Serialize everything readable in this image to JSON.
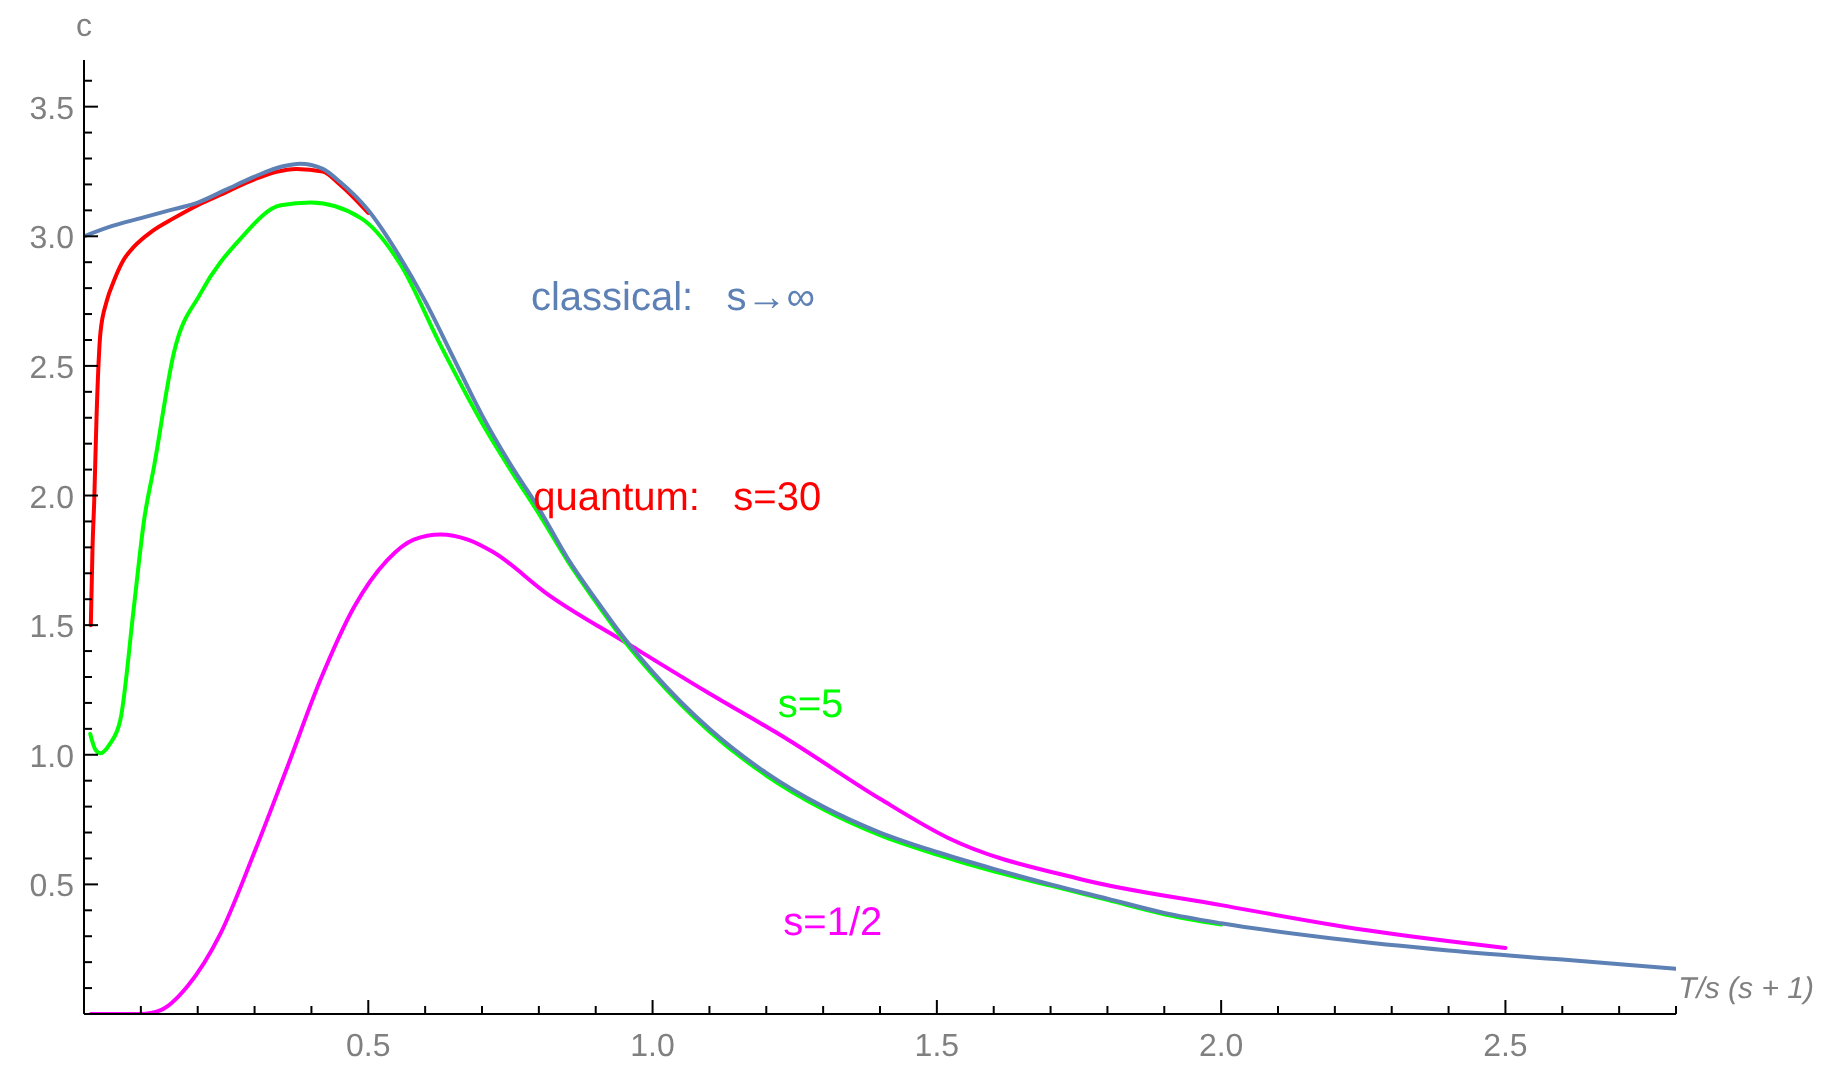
{
  "chart_data": {
    "type": "line",
    "xlabel": "T/s (s + 1)",
    "ylabel": "c",
    "marker": "none",
    "line_style": "solid",
    "xlim": [
      0,
      2.8
    ],
    "ylim": [
      0,
      3.68
    ],
    "xticks": [
      {
        "value": 0.1,
        "label": null
      },
      {
        "value": 0.2,
        "label": null
      },
      {
        "value": 0.3,
        "label": null
      },
      {
        "value": 0.4,
        "label": null
      },
      0.5,
      {
        "value": 0.6,
        "label": null
      },
      {
        "value": 0.7,
        "label": null
      },
      {
        "value": 0.8,
        "label": null
      },
      {
        "value": 0.9,
        "label": null
      },
      {
        "value": 1,
        "label": "1.0"
      },
      {
        "value": 1.1,
        "label": null
      },
      {
        "value": 1.2,
        "label": null
      },
      {
        "value": 1.3,
        "label": null
      },
      {
        "value": 1.4,
        "label": null
      },
      1.5,
      {
        "value": 1.6,
        "label": null
      },
      {
        "value": 1.7,
        "label": null
      },
      {
        "value": 1.8,
        "label": null
      },
      {
        "value": 1.9,
        "label": null
      },
      {
        "value": 2,
        "label": "2.0"
      },
      {
        "value": 2.1,
        "label": null
      },
      {
        "value": 2.2,
        "label": null
      },
      {
        "value": 2.3,
        "label": null
      },
      {
        "value": 2.4,
        "label": null
      },
      2.5,
      {
        "value": 2.6,
        "label": null
      },
      {
        "value": 2.7,
        "label": null
      },
      {
        "value": 2.8,
        "label": null
      }
    ],
    "yticks": [
      {
        "value": 0.1,
        "label": null
      },
      {
        "value": 0.2,
        "label": null
      },
      {
        "value": 0.3,
        "label": null
      },
      {
        "value": 0.4,
        "label": null
      },
      0.5,
      {
        "value": 0.6,
        "label": null
      },
      {
        "value": 0.7,
        "label": null
      },
      {
        "value": 0.8,
        "label": null
      },
      {
        "value": 0.9,
        "label": null
      },
      {
        "value": 1,
        "label": "1.0"
      },
      {
        "value": 1.1,
        "label": null
      },
      {
        "value": 1.2,
        "label": null
      },
      {
        "value": 1.3,
        "label": null
      },
      {
        "value": 1.4,
        "label": null
      },
      1.5,
      {
        "value": 1.6,
        "label": null
      },
      {
        "value": 1.7,
        "label": null
      },
      {
        "value": 1.8,
        "label": null
      },
      {
        "value": 1.9,
        "label": null
      },
      {
        "value": 2,
        "label": "2.0"
      },
      {
        "value": 2.1,
        "label": null
      },
      {
        "value": 2.2,
        "label": null
      },
      {
        "value": 2.3,
        "label": null
      },
      {
        "value": 2.4,
        "label": null
      },
      2.5,
      {
        "value": 2.6,
        "label": null
      },
      {
        "value": 2.7,
        "label": null
      },
      {
        "value": 2.8,
        "label": null
      },
      {
        "value": 2.9,
        "label": null
      },
      {
        "value": 3,
        "label": "3.0"
      },
      {
        "value": 3.1,
        "label": null
      },
      {
        "value": 3.2,
        "label": null
      },
      {
        "value": 3.3,
        "label": null
      },
      {
        "value": 3.4,
        "label": null
      },
      3.5,
      {
        "value": 3.6,
        "label": null
      }
    ],
    "series": [
      {
        "name": "s=1/2",
        "color": "#ff00ff",
        "x": [
          0.012,
          0.05,
          0.1,
          0.135,
          0.182,
          0.24,
          0.299,
          0.358,
          0.416,
          0.475,
          0.533,
          0.58,
          0.627,
          0.675,
          0.721,
          0.815,
          0.955,
          1.097,
          1.237,
          1.4,
          1.519,
          1.753,
          2.0,
          2.25,
          2.5
        ],
        "values": [
          0,
          0,
          0,
          0.015,
          0.107,
          0.31,
          0.62,
          0.955,
          1.29,
          1.57,
          1.75,
          1.83,
          1.85,
          1.83,
          1.78,
          1.62,
          1.43,
          1.24,
          1.06,
          0.83,
          0.68,
          0.52,
          0.42,
          0.325,
          0.255
        ]
      },
      {
        "name": "s=5",
        "color": "#00ff00",
        "x": [
          0.011,
          0.02,
          0.029,
          0.045,
          0.064,
          0.088,
          0.106,
          0.123,
          0.158,
          0.205,
          0.275,
          0.346,
          0.399,
          0.487,
          0.557,
          0.627,
          0.7,
          0.75,
          0.8,
          0.85,
          0.9,
          0.95,
          1.0,
          1.1,
          1.2,
          1.3,
          1.4,
          1.5,
          1.6,
          1.7,
          1.8,
          1.9,
          2.0
        ],
        "values": [
          1.08,
          1.02,
          1.006,
          1.04,
          1.135,
          1.575,
          1.91,
          2.11,
          2.55,
          2.78,
          2.99,
          3.12,
          3.13,
          3.07,
          2.89,
          2.58,
          2.28,
          2.1,
          1.93,
          1.75,
          1.59,
          1.44,
          1.31,
          1.09,
          0.92,
          0.79,
          0.69,
          0.615,
          0.55,
          0.495,
          0.44,
          0.385,
          0.345
        ]
      },
      {
        "name": "quantum:   s=30",
        "color": "#ff0000",
        "x": [
          0.012,
          0.015,
          0.018,
          0.022,
          0.029,
          0.04,
          0.053,
          0.07,
          0.088,
          0.12,
          0.158,
          0.2,
          0.24,
          0.3,
          0.374,
          0.42,
          0.45,
          0.5
        ],
        "values": [
          1.5,
          1.8,
          1.98,
          2.3,
          2.63,
          2.75,
          2.83,
          2.91,
          2.96,
          3.02,
          3.07,
          3.12,
          3.16,
          3.22,
          3.26,
          3.25,
          3.2,
          3.09
        ]
      },
      {
        "name": "classical:   s→∞",
        "color": "#5e81b5",
        "x": [
          0,
          0.05,
          0.1,
          0.15,
          0.2,
          0.25,
          0.3,
          0.35,
          0.38,
          0.42,
          0.45,
          0.5,
          0.55,
          0.6,
          0.65,
          0.7,
          0.75,
          0.8,
          0.85,
          0.9,
          0.95,
          1.0,
          1.1,
          1.2,
          1.3,
          1.4,
          1.5,
          1.6,
          1.7,
          1.8,
          1.9,
          2.0,
          2.2,
          2.4,
          2.6,
          2.8
        ],
        "values": [
          3.0,
          3.04,
          3.07,
          3.1,
          3.13,
          3.18,
          3.23,
          3.27,
          3.28,
          3.26,
          3.21,
          3.1,
          2.94,
          2.75,
          2.53,
          2.31,
          2.12,
          1.95,
          1.76,
          1.6,
          1.45,
          1.32,
          1.1,
          0.93,
          0.8,
          0.7,
          0.625,
          0.56,
          0.5,
          0.445,
          0.39,
          0.35,
          0.29,
          0.245,
          0.21,
          0.175
        ]
      }
    ]
  }
}
